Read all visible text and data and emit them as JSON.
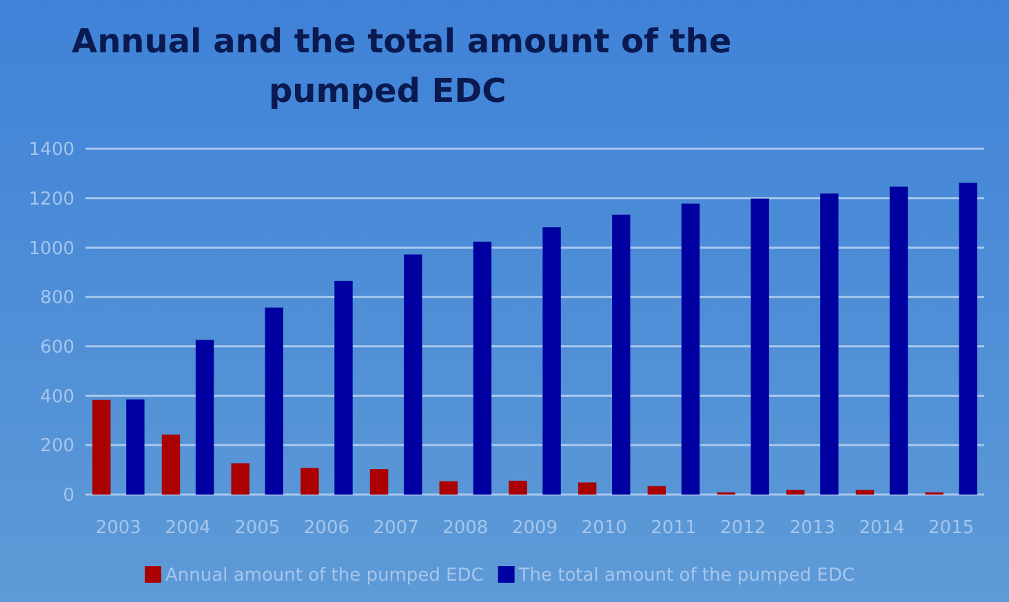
{
  "chart_data": {
    "type": "bar",
    "title": "Annual and the total amount of the pumped EDC",
    "categories": [
      "2003",
      "2004",
      "2005",
      "2006",
      "2007",
      "2008",
      "2009",
      "2010",
      "2011",
      "2012",
      "2013",
      "2014",
      "2015"
    ],
    "series": [
      {
        "name": "Annual amount of the pumped EDC",
        "color": "#aa0000",
        "values": [
          383,
          243,
          127,
          108,
          103,
          54,
          56,
          49,
          34,
          9,
          19,
          19,
          9
        ]
      },
      {
        "name": "The total amount of the pumped EDC",
        "color": "#0000a0",
        "values": [
          385,
          626,
          757,
          865,
          972,
          1024,
          1082,
          1133,
          1178,
          1198,
          1219,
          1247,
          1262
        ]
      }
    ],
    "ylim": [
      0,
      1400
    ],
    "yticks": [
      0,
      200,
      400,
      600,
      800,
      1000,
      1200,
      1400
    ],
    "grid": "y",
    "legend": "bottom"
  }
}
